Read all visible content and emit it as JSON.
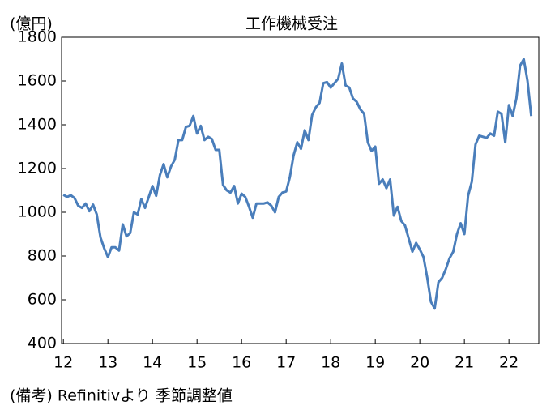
{
  "chart_data": {
    "type": "line",
    "title": "工作機械受注",
    "y_unit": "(億円)",
    "note": "(備考) Refinitivより 季節調整値",
    "color": "#4a7ebb",
    "xlim": [
      11.96,
      22.67
    ],
    "xticks": [
      12,
      13,
      14,
      15,
      16,
      17,
      18,
      19,
      20,
      21,
      22
    ],
    "ylim": [
      400,
      1800
    ],
    "yticks": [
      400,
      600,
      800,
      1000,
      1200,
      1400,
      1600,
      1800
    ],
    "x": [
      12,
      12.083,
      12.167,
      12.25,
      12.333,
      12.417,
      12.5,
      12.583,
      12.667,
      12.75,
      12.833,
      12.917,
      13,
      13.083,
      13.167,
      13.25,
      13.333,
      13.417,
      13.5,
      13.583,
      13.667,
      13.75,
      13.833,
      13.917,
      14,
      14.083,
      14.167,
      14.25,
      14.333,
      14.417,
      14.5,
      14.583,
      14.667,
      14.75,
      14.833,
      14.917,
      15,
      15.083,
      15.167,
      15.25,
      15.333,
      15.417,
      15.5,
      15.583,
      15.667,
      15.75,
      15.833,
      15.917,
      16,
      16.083,
      16.167,
      16.25,
      16.333,
      16.417,
      16.5,
      16.583,
      16.667,
      16.75,
      16.833,
      16.917,
      17,
      17.083,
      17.167,
      17.25,
      17.333,
      17.417,
      17.5,
      17.583,
      17.667,
      17.75,
      17.833,
      17.917,
      18,
      18.083,
      18.167,
      18.25,
      18.333,
      18.417,
      18.5,
      18.583,
      18.667,
      18.75,
      18.833,
      18.917,
      19,
      19.083,
      19.167,
      19.25,
      19.333,
      19.417,
      19.5,
      19.583,
      19.667,
      19.75,
      19.833,
      19.917,
      20,
      20.083,
      20.167,
      20.25,
      20.333,
      20.417,
      20.5,
      20.583,
      20.667,
      20.75,
      20.833,
      20.917,
      21,
      21.083,
      21.167,
      21.25,
      21.333,
      21.417,
      21.5,
      21.583,
      21.667,
      21.75,
      21.833,
      21.917,
      22,
      22.083,
      22.167,
      22.25,
      22.333,
      22.417,
      22.5
    ],
    "values": [
      1080,
      1070,
      1078,
      1065,
      1030,
      1020,
      1040,
      1005,
      1035,
      990,
      885,
      835,
      795,
      840,
      840,
      825,
      945,
      890,
      905,
      1000,
      990,
      1060,
      1020,
      1070,
      1120,
      1075,
      1170,
      1220,
      1160,
      1210,
      1240,
      1330,
      1330,
      1390,
      1395,
      1440,
      1360,
      1395,
      1330,
      1345,
      1335,
      1285,
      1285,
      1125,
      1100,
      1090,
      1120,
      1040,
      1085,
      1070,
      1025,
      975,
      1040,
      1040,
      1040,
      1045,
      1030,
      1000,
      1070,
      1090,
      1095,
      1160,
      1260,
      1320,
      1290,
      1375,
      1330,
      1445,
      1480,
      1500,
      1590,
      1595,
      1570,
      1590,
      1610,
      1680,
      1580,
      1570,
      1520,
      1505,
      1470,
      1450,
      1320,
      1280,
      1300,
      1130,
      1150,
      1110,
      1150,
      985,
      1025,
      960,
      940,
      880,
      820,
      860,
      830,
      795,
      700,
      590,
      560,
      680,
      700,
      740,
      790,
      820,
      900,
      950,
      900,
      1075,
      1140,
      1310,
      1350,
      1345,
      1340,
      1360,
      1350,
      1460,
      1450,
      1320,
      1490,
      1440,
      1520,
      1670,
      1700,
      1600,
      1440
    ]
  }
}
